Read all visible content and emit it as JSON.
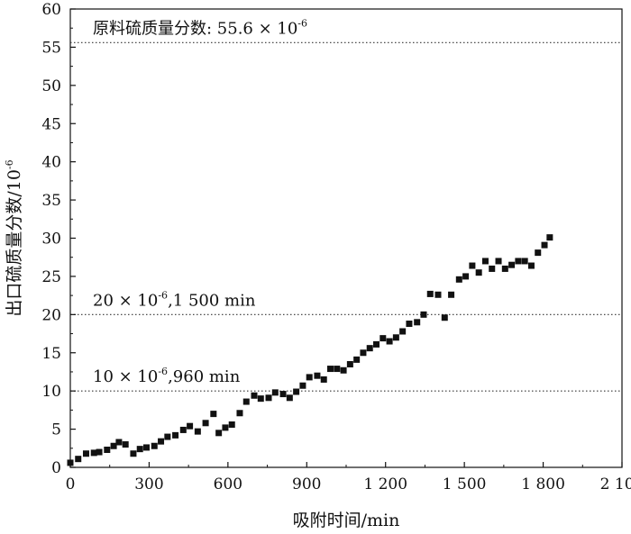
{
  "chart_data": {
    "type": "scatter",
    "xlabel": "吸附时间/min",
    "ylabel": "出口硫质量分数/10",
    "ylabel_exponent": "-6",
    "xlim": [
      0,
      2100
    ],
    "ylim": [
      0,
      60
    ],
    "x_ticks": [
      0,
      300,
      600,
      900,
      1200,
      1500,
      1800,
      2100
    ],
    "x_tick_labels": [
      "0",
      "300",
      "600",
      "900",
      "1 200",
      "1 500",
      "1 800",
      "2 100"
    ],
    "y_ticks": [
      0,
      5,
      10,
      15,
      20,
      25,
      30,
      35,
      40,
      45,
      50,
      55,
      60
    ],
    "y_tick_labels": [
      "0",
      "5",
      "10",
      "15",
      "20",
      "25",
      "30",
      "35",
      "40",
      "45",
      "50",
      "55",
      "60"
    ],
    "reference_lines": [
      {
        "y": 55.6,
        "label": "原料硫质量分数: 55.6 × 10",
        "exponent": "-6"
      },
      {
        "y": 20,
        "label": "20 × 10",
        "exponent": "-6",
        "suffix": ",1 500 min"
      },
      {
        "y": 10,
        "label": "10 × 10",
        "exponent": "-6",
        "suffix": ",960 min"
      }
    ],
    "series": [
      {
        "marker": "square",
        "color": "#111111",
        "points": [
          [
            0,
            0.6
          ],
          [
            30,
            1.1
          ],
          [
            60,
            1.8
          ],
          [
            90,
            1.9
          ],
          [
            110,
            2.0
          ],
          [
            140,
            2.3
          ],
          [
            165,
            2.8
          ],
          [
            185,
            3.3
          ],
          [
            210,
            3.0
          ],
          [
            240,
            1.8
          ],
          [
            265,
            2.4
          ],
          [
            290,
            2.6
          ],
          [
            320,
            2.8
          ],
          [
            345,
            3.4
          ],
          [
            370,
            4.0
          ],
          [
            400,
            4.2
          ],
          [
            430,
            4.9
          ],
          [
            455,
            5.4
          ],
          [
            485,
            4.7
          ],
          [
            515,
            5.8
          ],
          [
            545,
            7.0
          ],
          [
            565,
            4.5
          ],
          [
            590,
            5.2
          ],
          [
            615,
            5.6
          ],
          [
            645,
            7.1
          ],
          [
            670,
            8.6
          ],
          [
            700,
            9.4
          ],
          [
            725,
            9.0
          ],
          [
            755,
            9.1
          ],
          [
            780,
            9.8
          ],
          [
            810,
            9.6
          ],
          [
            835,
            9.1
          ],
          [
            860,
            9.9
          ],
          [
            885,
            10.7
          ],
          [
            910,
            11.8
          ],
          [
            940,
            12.0
          ],
          [
            965,
            11.5
          ],
          [
            990,
            12.9
          ],
          [
            1015,
            12.9
          ],
          [
            1040,
            12.7
          ],
          [
            1065,
            13.5
          ],
          [
            1090,
            14.1
          ],
          [
            1115,
            15.0
          ],
          [
            1140,
            15.6
          ],
          [
            1165,
            16.1
          ],
          [
            1190,
            16.9
          ],
          [
            1215,
            16.5
          ],
          [
            1240,
            17.0
          ],
          [
            1265,
            17.8
          ],
          [
            1290,
            18.8
          ],
          [
            1320,
            19.0
          ],
          [
            1345,
            20.0
          ],
          [
            1370,
            22.7
          ],
          [
            1400,
            22.6
          ],
          [
            1425,
            19.6
          ],
          [
            1450,
            22.6
          ],
          [
            1480,
            24.6
          ],
          [
            1505,
            25.0
          ],
          [
            1530,
            26.4
          ],
          [
            1555,
            25.5
          ],
          [
            1580,
            27.0
          ],
          [
            1605,
            26.0
          ],
          [
            1630,
            27.0
          ],
          [
            1655,
            26.0
          ],
          [
            1680,
            26.5
          ],
          [
            1705,
            27.0
          ],
          [
            1730,
            27.0
          ],
          [
            1755,
            26.4
          ],
          [
            1780,
            28.1
          ],
          [
            1805,
            29.1
          ],
          [
            1825,
            30.1
          ]
        ]
      }
    ]
  }
}
